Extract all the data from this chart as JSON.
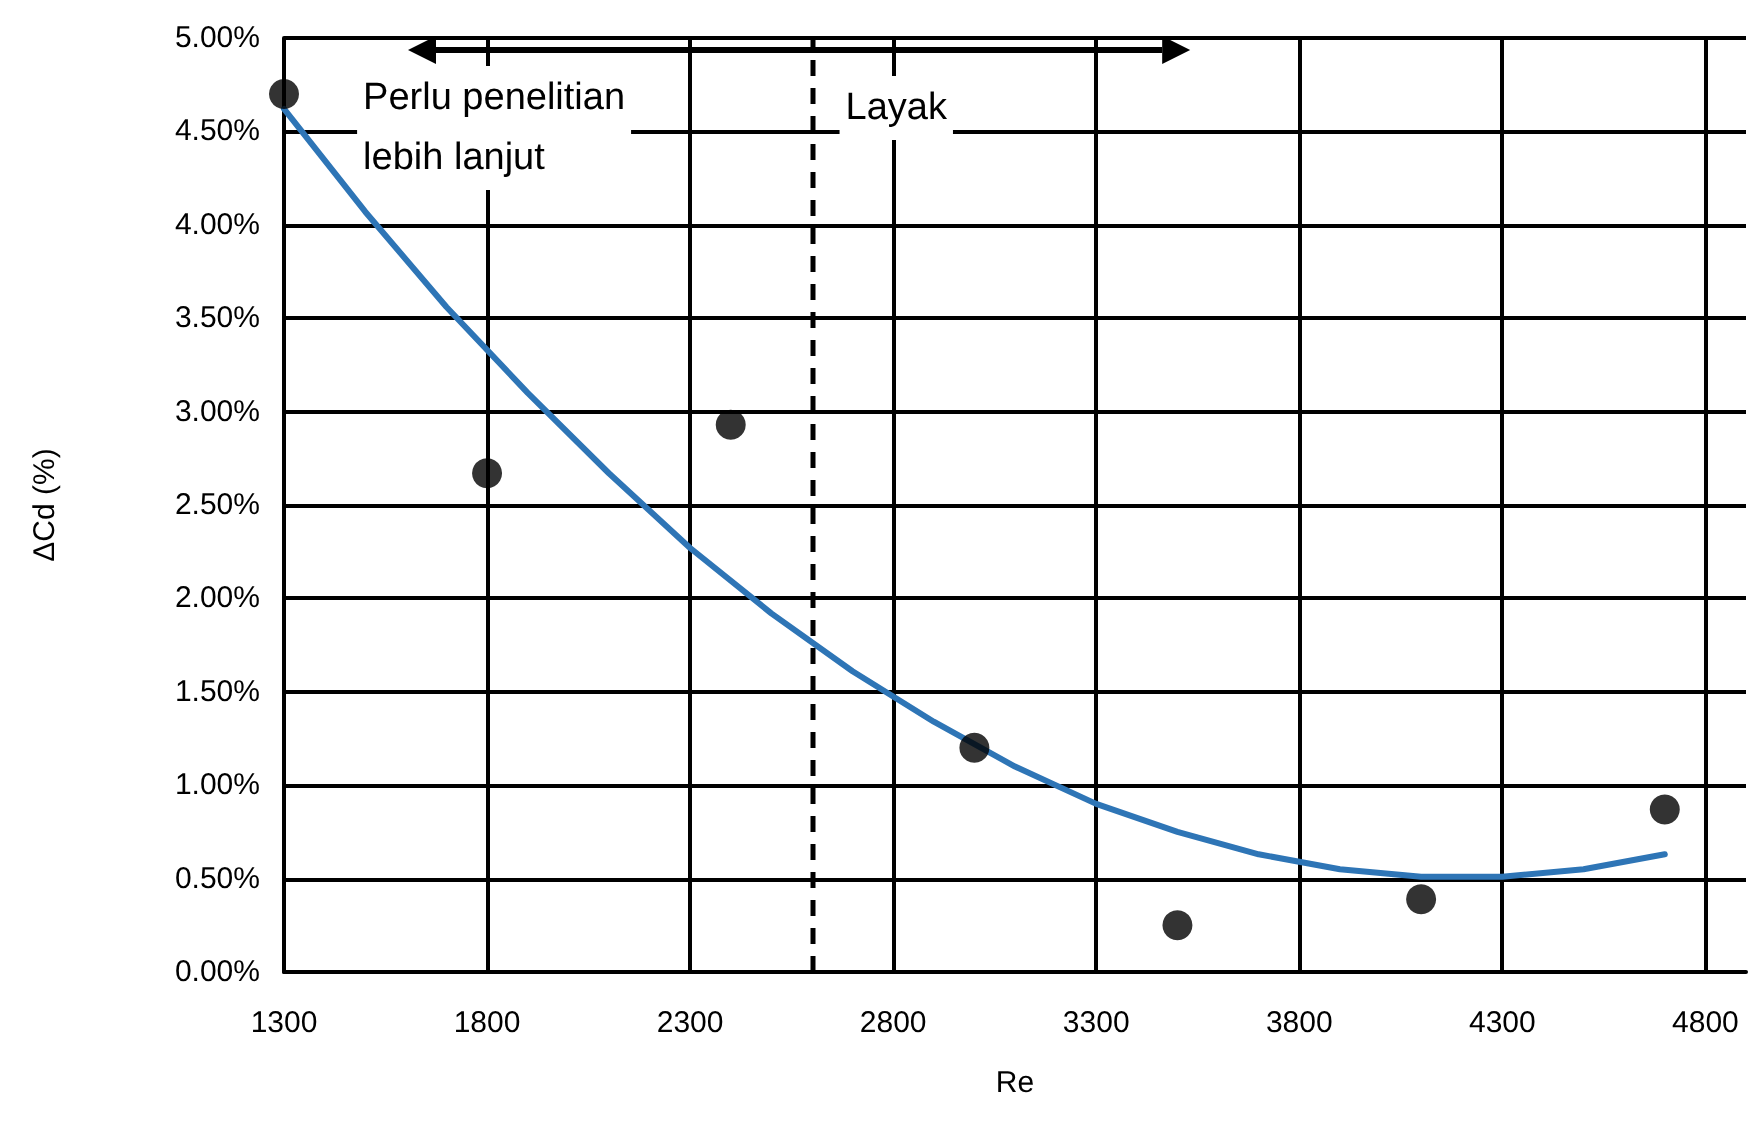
{
  "chart_data": {
    "type": "scatter",
    "xlabel": "Re",
    "ylabel": "ΔCd (%)",
    "xlim": [
      1300,
      4900
    ],
    "xticks": [
      1300,
      1800,
      2300,
      2800,
      3300,
      3800,
      4300,
      4800
    ],
    "ylim": [
      0,
      5
    ],
    "yticks": [
      {
        "value": 0,
        "label": "0.00%"
      },
      {
        "value": 0.5,
        "label": "0.50%"
      },
      {
        "value": 1,
        "label": "1.00%"
      },
      {
        "value": 1.5,
        "label": "1.50%"
      },
      {
        "value": 2,
        "label": "2.00%"
      },
      {
        "value": 2.5,
        "label": "2.50%"
      },
      {
        "value": 3,
        "label": "3.00%"
      },
      {
        "value": 3.5,
        "label": "3.50%"
      },
      {
        "value": 4,
        "label": "4.00%"
      },
      {
        "value": 4.5,
        "label": "4.50%"
      },
      {
        "value": 5,
        "label": "5.00%"
      }
    ],
    "grid": true,
    "marker": "circle",
    "series": [
      {
        "color": "#000000",
        "x": [
          1300,
          1800,
          2400,
          3000,
          3500,
          4100,
          4700
        ],
        "values": [
          4.7,
          2.67,
          2.93,
          1.2,
          0.25,
          0.39,
          0.87
        ]
      },
      {
        "type": "line",
        "color": "#2e75b6",
        "marker": "none",
        "x": [
          1300,
          1500,
          1700,
          1900,
          2100,
          2300,
          2500,
          2700,
          2900,
          3100,
          3300,
          3500,
          3700,
          3900,
          4100,
          4300,
          4500,
          4700
        ],
        "values": [
          4.62,
          4.07,
          3.56,
          3.1,
          2.67,
          2.27,
          1.92,
          1.61,
          1.34,
          1.1,
          0.9,
          0.75,
          0.63,
          0.55,
          0.51,
          0.51,
          0.55,
          0.63
        ]
      }
    ],
    "ref_lines": [
      {
        "axis": "x",
        "value": 2600,
        "color": "#000000",
        "line_style": "dashed"
      }
    ],
    "annotations": [
      "Perlu penelitian\nlebih lanjut",
      "Layak"
    ]
  }
}
